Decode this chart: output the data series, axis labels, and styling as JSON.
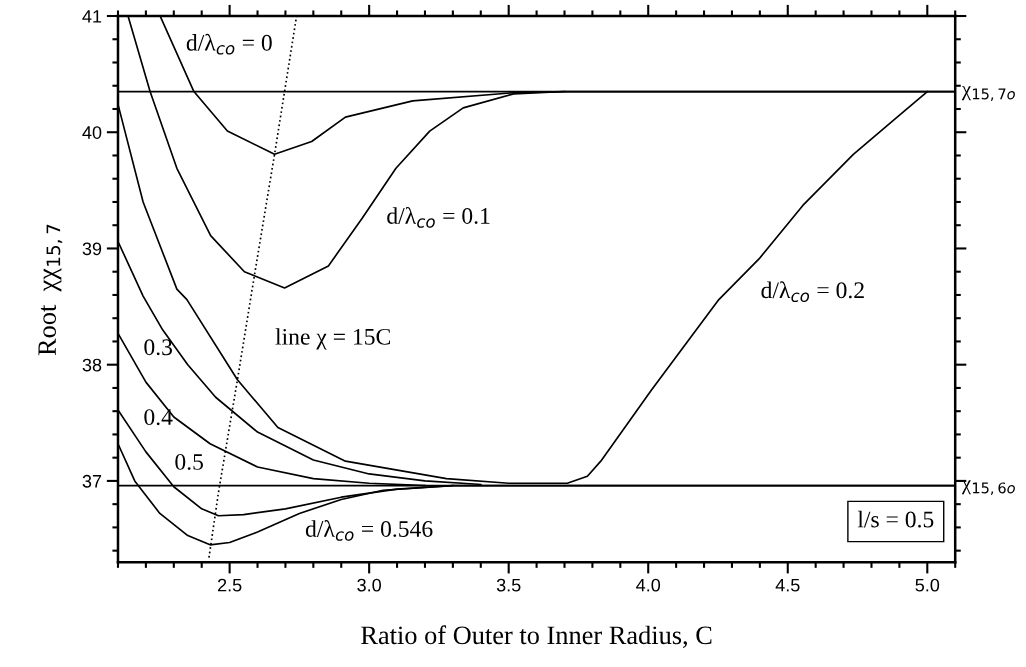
{
  "chart_data": {
    "type": "line",
    "xlabel": "Ratio of Outer to Inner Radius, C",
    "ylabel": "Root  χχ$_{15,7}$",
    "xlim": [
      2.1,
      5.1
    ],
    "xticks": [
      {
        "value": 2.5,
        "label": "2.5"
      },
      {
        "value": 3.0,
        "label": "3.0"
      },
      {
        "value": 3.5,
        "label": "3.5"
      },
      {
        "value": 4.0,
        "label": "4.0"
      },
      {
        "value": 4.5,
        "label": "4.5"
      },
      {
        "value": 5.0,
        "label": "5.0"
      }
    ],
    "ylim": [
      36.3,
      41
    ],
    "yticks": [
      37,
      38,
      39,
      40,
      41
    ],
    "grid": false,
    "marker": "none",
    "series": [
      {
        "name": "d/λ$_{co}$ = 0",
        "color": "#000000",
        "x": [
          2.251,
          2.372,
          2.492,
          2.661,
          2.794,
          2.915,
          3.156,
          3.518,
          3.7,
          5.1
        ],
        "values": [
          41.0,
          40.35,
          40.01,
          39.81,
          39.92,
          40.13,
          40.27,
          40.34,
          40.35,
          40.35
        ]
      },
      {
        "name": "d/λ$_{co}$ = 0.1",
        "color": "#000000",
        "x": [
          2.136,
          2.215,
          2.311,
          2.432,
          2.553,
          2.697,
          2.854,
          2.975,
          3.096,
          3.217,
          3.337,
          3.518,
          3.7
        ],
        "values": [
          41.0,
          40.35,
          39.69,
          39.11,
          38.8,
          38.66,
          38.85,
          39.26,
          39.69,
          40.01,
          40.21,
          40.33,
          40.35
        ]
      },
      {
        "name": "d/λ$_{co}$ = 0.2",
        "color": "#000000",
        "x": [
          2.1,
          2.19,
          2.311,
          2.347,
          2.528,
          2.673,
          2.915,
          3.277,
          3.5,
          3.71,
          3.782,
          3.83,
          4.011,
          4.253,
          4.397,
          4.554,
          4.735,
          4.892,
          5.0
        ],
        "values": [
          40.24,
          39.4,
          38.65,
          38.56,
          37.87,
          37.46,
          37.17,
          37.02,
          36.98,
          36.98,
          37.04,
          37.17,
          37.78,
          38.56,
          38.91,
          39.37,
          39.81,
          40.13,
          40.35
        ]
      },
      {
        "name": "0.3",
        "color": "#000000",
        "x": [
          2.1,
          2.19,
          2.26,
          2.35,
          2.45,
          2.6,
          2.8,
          3.0,
          3.2,
          3.4
        ],
        "values": [
          39.06,
          38.59,
          38.3,
          38.0,
          37.72,
          37.42,
          37.18,
          37.06,
          37.0,
          36.97
        ]
      },
      {
        "name": "0.4",
        "color": "#000000",
        "x": [
          2.1,
          2.2,
          2.3,
          2.43,
          2.6,
          2.8,
          3.0,
          3.2
        ],
        "values": [
          38.27,
          37.85,
          37.55,
          37.32,
          37.12,
          37.02,
          36.98,
          36.96
        ]
      },
      {
        "name": "0.5",
        "color": "#000000",
        "x": [
          2.1,
          2.2,
          2.3,
          2.4,
          2.46,
          2.55,
          2.7,
          2.9,
          3.1,
          3.3
        ],
        "values": [
          37.61,
          37.25,
          36.95,
          36.76,
          36.7,
          36.71,
          36.76,
          36.86,
          36.93,
          36.96
        ]
      },
      {
        "name": "d/λ$_{co}$ = 0.546",
        "color": "#000000",
        "x": [
          2.1,
          2.16,
          2.25,
          2.35,
          2.43,
          2.5,
          2.6,
          2.75,
          2.9,
          3.05,
          3.3,
          5.1
        ],
        "values": [
          37.32,
          37.0,
          36.72,
          36.53,
          36.45,
          36.47,
          36.56,
          36.72,
          36.84,
          36.92,
          36.96,
          36.96
        ]
      },
      {
        "name": "line χ = 15C",
        "color": "#000000",
        "line_style": "dotted",
        "x": [
          2.426,
          2.46,
          2.528,
          2.589,
          2.661,
          2.74
        ],
        "values": [
          36.34,
          36.9,
          37.87,
          38.77,
          39.81,
          41.0
        ]
      }
    ],
    "ref_lines": [
      {
        "axis": "y",
        "value": 40.35,
        "label": "χ$_{15,7o}$",
        "color": "#000000"
      },
      {
        "axis": "y",
        "value": 36.96,
        "label": "χ$_{15,6o}$",
        "color": "#000000"
      }
    ],
    "annotations": [
      "l/s = 0.5"
    ]
  }
}
